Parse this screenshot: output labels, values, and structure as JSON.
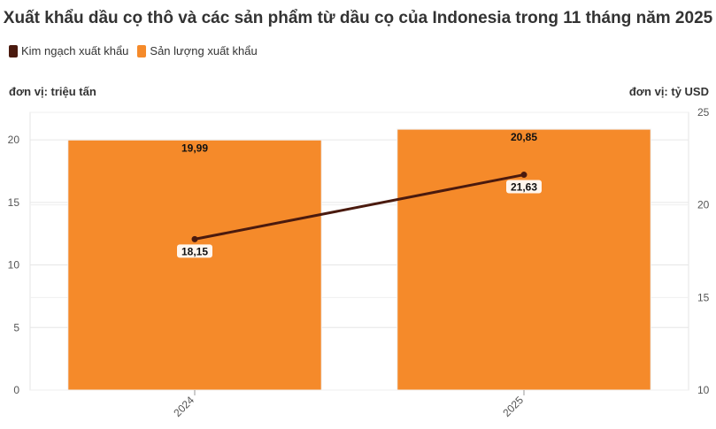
{
  "chart_data": {
    "type": "bar",
    "title": "Xuất khẩu dầu cọ thô và các sản phẩm từ dầu cọ của Indonesia trong 11 tháng năm 2025",
    "categories": [
      "2024",
      "2025"
    ],
    "series": [
      {
        "name": "Sản lượng xuất khẩu",
        "type": "bar",
        "axis": "left",
        "values": [
          19.99,
          20.85
        ],
        "labels": [
          "19,99",
          "20,85"
        ],
        "color": "#f58a2a"
      },
      {
        "name": "Kim ngạch xuất khẩu",
        "type": "line",
        "axis": "right",
        "values": [
          18.15,
          21.63
        ],
        "labels": [
          "18,15",
          "21,63"
        ],
        "color": "#4a1a0e"
      }
    ],
    "y_left": {
      "label": "đơn vị: triệu tấn",
      "range": [
        0,
        22.2
      ],
      "ticks": [
        0,
        5,
        10,
        15,
        20
      ]
    },
    "y_right": {
      "label": "đơn vị: tỷ USD",
      "range": [
        10,
        25
      ],
      "ticks": [
        10,
        15,
        20,
        25
      ]
    },
    "legend": "top-left",
    "grid": true
  }
}
